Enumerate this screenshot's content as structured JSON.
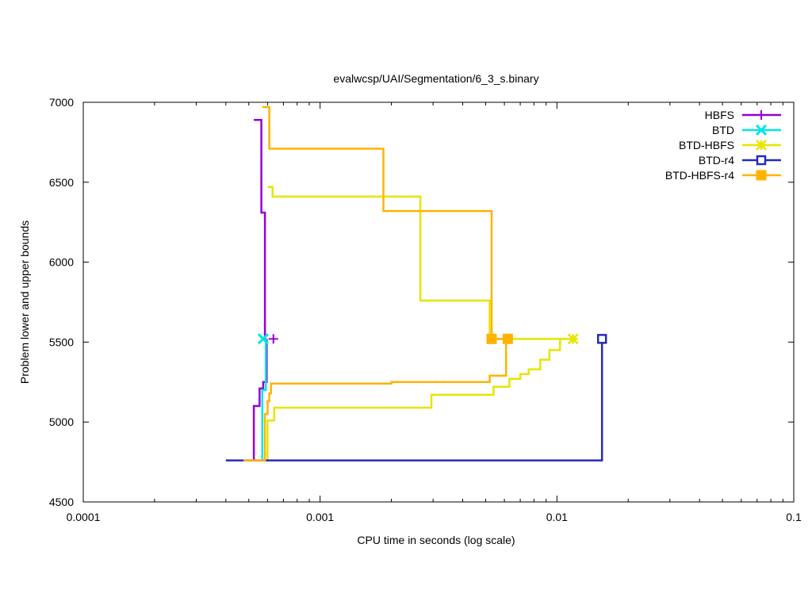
{
  "chart_data": {
    "type": "line",
    "title": "evalwcsp/UAI/Segmentation/6_3_s.binary",
    "xlabel": "CPU time in seconds (log scale)",
    "ylabel": "Problem lower and upper bounds",
    "xscale": "log",
    "xlim": [
      0.0001,
      0.1
    ],
    "ylim": [
      4500,
      7000
    ],
    "x_ticks": [
      0.0001,
      0.001,
      0.01,
      0.1
    ],
    "x_tick_labels": [
      "0.0001",
      "0.001",
      "0.01",
      "0.1"
    ],
    "y_ticks": [
      4500,
      5000,
      5500,
      6000,
      6500,
      7000
    ],
    "y_tick_labels": [
      "4500",
      "5000",
      "5500",
      "6000",
      "6500",
      "7000"
    ],
    "grid": false,
    "legend_position": "top-right",
    "series": [
      {
        "name": "HBFS",
        "color": "#9400d3",
        "marker": "plus",
        "upper": [
          [
            0.000525,
            6890
          ],
          [
            0.000565,
            6890
          ],
          [
            0.000565,
            6310
          ],
          [
            0.000585,
            6310
          ],
          [
            0.000585,
            5520
          ]
        ],
        "lower": [
          [
            0.000525,
            4760
          ],
          [
            0.000525,
            5100
          ],
          [
            0.000555,
            5100
          ],
          [
            0.000555,
            5210
          ],
          [
            0.000575,
            5210
          ],
          [
            0.000575,
            5250
          ],
          [
            0.000595,
            5250
          ],
          [
            0.000595,
            5520
          ]
        ],
        "markers": [
          [
            0.000635,
            5520
          ]
        ]
      },
      {
        "name": "BTD",
        "color": "#00e5e5",
        "marker": "x",
        "upper": [
          [
            0.00059,
            5520
          ]
        ],
        "lower": [
          [
            0.00057,
            4760
          ],
          [
            0.00057,
            5200
          ],
          [
            0.00059,
            5200
          ],
          [
            0.00059,
            5520
          ]
        ],
        "markers": [
          [
            0.000575,
            5520
          ]
        ]
      },
      {
        "name": "BTD-HBFS",
        "color": "#e5e500",
        "marker": "star",
        "upper": [
          [
            0.0006,
            6470
          ],
          [
            0.00063,
            6470
          ],
          [
            0.00063,
            6410
          ],
          [
            0.00265,
            6410
          ],
          [
            0.00265,
            5760
          ],
          [
            0.0052,
            5760
          ],
          [
            0.0052,
            5520
          ],
          [
            0.0117,
            5520
          ]
        ],
        "lower": [
          [
            0.0006,
            4760
          ],
          [
            0.0006,
            5010
          ],
          [
            0.00064,
            5010
          ],
          [
            0.00064,
            5090
          ],
          [
            0.00295,
            5090
          ],
          [
            0.00295,
            5170
          ],
          [
            0.0054,
            5170
          ],
          [
            0.0054,
            5220
          ],
          [
            0.0063,
            5220
          ],
          [
            0.0063,
            5270
          ],
          [
            0.007,
            5270
          ],
          [
            0.007,
            5300
          ],
          [
            0.0076,
            5300
          ],
          [
            0.0076,
            5330
          ],
          [
            0.0085,
            5330
          ],
          [
            0.0085,
            5390
          ],
          [
            0.0093,
            5390
          ],
          [
            0.0093,
            5450
          ],
          [
            0.0103,
            5450
          ],
          [
            0.0103,
            5520
          ],
          [
            0.0117,
            5520
          ]
        ],
        "markers": [
          [
            0.0117,
            5520
          ]
        ]
      },
      {
        "name": "BTD-r4",
        "color": "#2929bd",
        "marker": "square-open",
        "upper": [
          [
            0.0155,
            5520
          ]
        ],
        "lower": [
          [
            0.0004,
            4760
          ],
          [
            0.0155,
            4760
          ],
          [
            0.0155,
            5520
          ]
        ],
        "markers": [
          [
            0.0155,
            5520
          ]
        ]
      },
      {
        "name": "BTD-HBFS-r4",
        "color": "#ffb300",
        "marker": "square-filled",
        "upper": [
          [
            0.00057,
            6970
          ],
          [
            0.00061,
            6970
          ],
          [
            0.00061,
            6710
          ],
          [
            0.00185,
            6710
          ],
          [
            0.00185,
            6320
          ],
          [
            0.0053,
            6320
          ],
          [
            0.0053,
            5520
          ],
          [
            0.0062,
            5520
          ]
        ],
        "lower": [
          [
            0.000475,
            4760
          ],
          [
            0.000585,
            4760
          ],
          [
            0.000585,
            5050
          ],
          [
            0.0006,
            5050
          ],
          [
            0.0006,
            5130
          ],
          [
            0.00061,
            5130
          ],
          [
            0.00061,
            5180
          ],
          [
            0.00062,
            5180
          ],
          [
            0.00062,
            5240
          ],
          [
            0.002,
            5240
          ],
          [
            0.002,
            5250
          ],
          [
            0.0052,
            5250
          ],
          [
            0.0052,
            5290
          ],
          [
            0.0061,
            5290
          ],
          [
            0.0061,
            5520
          ],
          [
            0.0062,
            5520
          ]
        ],
        "markers": [
          [
            0.0053,
            5520
          ],
          [
            0.0062,
            5520
          ]
        ]
      }
    ]
  }
}
